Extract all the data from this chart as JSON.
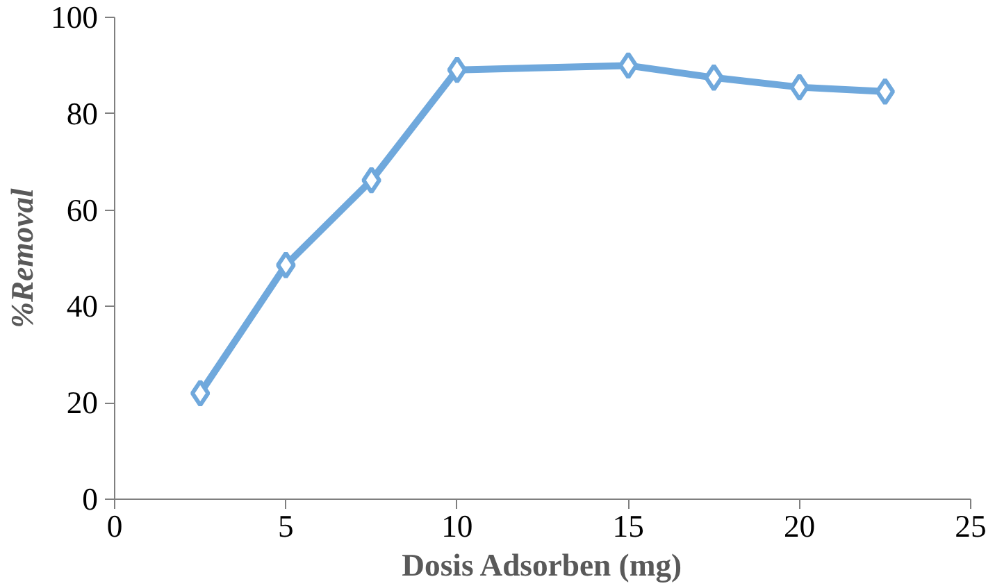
{
  "chart_data": {
    "type": "line",
    "xlabel": "Dosis Adsorben (mg)",
    "ylabel": "%Removal",
    "x": [
      2.5,
      5,
      7.5,
      10,
      15,
      17.5,
      20,
      22.5
    ],
    "series": [
      {
        "color": "#6fa8dc",
        "values": [
          22,
          48.6,
          66.2,
          89.1,
          90,
          87.5,
          85.5,
          84.6
        ]
      }
    ],
    "xlim": [
      0,
      25
    ],
    "xticks": [
      0,
      5,
      10,
      15,
      20,
      25
    ],
    "ylim": [
      0,
      100
    ],
    "yticks": [
      0,
      20,
      40,
      60,
      80,
      100
    ],
    "grid": false,
    "marker": "diamond",
    "line_style": "solid"
  }
}
